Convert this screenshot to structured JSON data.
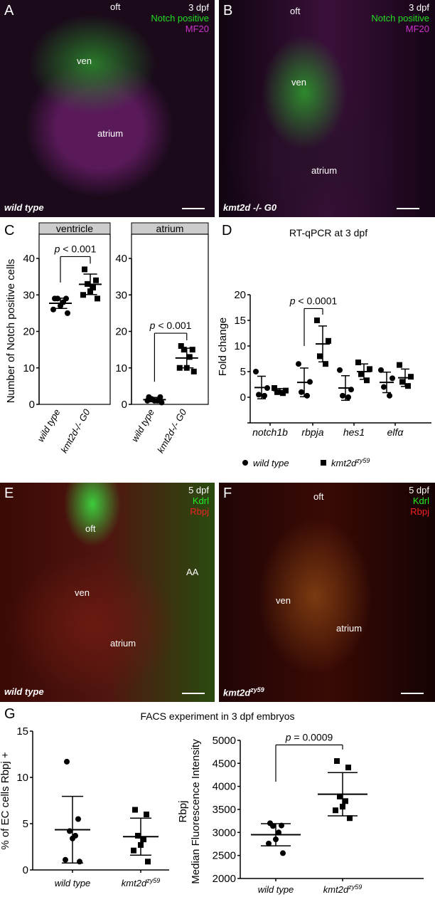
{
  "panels": {
    "A": {
      "letter": "A",
      "stage": "3 dpf",
      "ch1": "Notch positive",
      "ch2": "MF20",
      "oft": "oft",
      "ven": "ven",
      "atrium": "atrium",
      "genotype": "wild type",
      "colors": {
        "ch1": "#22dd22",
        "ch2": "#cc33cc"
      }
    },
    "B": {
      "letter": "B",
      "stage": "3 dpf",
      "ch1": "Notch positive",
      "ch2": "MF20",
      "oft": "oft",
      "ven": "ven",
      "atrium": "atrium",
      "genotype": "kmt2d -/- G0"
    },
    "C": {
      "letter": "C"
    },
    "D": {
      "letter": "D"
    },
    "E": {
      "letter": "E",
      "stage": "5 dpf",
      "ch1": "Kdrl",
      "ch2": "Rbpj",
      "oft": "oft",
      "ven": "ven",
      "atrium": "atrium",
      "aa": "AA",
      "genotype": "wild type",
      "colors": {
        "ch1": "#22ee22",
        "ch2": "#ee2222"
      }
    },
    "F": {
      "letter": "F",
      "stage": "5 dpf",
      "ch1": "Kdrl",
      "ch2": "Rbpj",
      "oft": "oft",
      "ven": "ven",
      "atrium": "atrium",
      "genotype": "kmt2d",
      "genotype_sup": "zy59"
    },
    "G": {
      "letter": "G",
      "title": "FACS experiment in 3 dpf embryos"
    }
  },
  "chart_data": [
    {
      "type": "scatter",
      "panel": "C",
      "facet": "ventricle",
      "ylabel": "Number of Notch positive cells",
      "ylim": [
        0,
        43
      ],
      "yticks": [
        0,
        10,
        20,
        30,
        40
      ],
      "categories": [
        "wild type",
        "kmt2d-/- G0"
      ],
      "annotation": "p < 0.001",
      "series": [
        {
          "values": [
            29,
            29,
            29,
            28,
            27,
            26,
            25
          ],
          "mean": 27.7,
          "sd": 1.4,
          "marker": "circle"
        },
        {
          "values": [
            37,
            34,
            33,
            32,
            31,
            30,
            29
          ],
          "mean": 32.9,
          "sd": 2.8,
          "marker": "square"
        }
      ]
    },
    {
      "type": "scatter",
      "panel": "C",
      "facet": "atrium",
      "ylim": [
        0,
        43
      ],
      "yticks": [
        0,
        10,
        20,
        30,
        40
      ],
      "categories": [
        "wild type",
        "kmt2d-/- G0"
      ],
      "annotation": "p < 0.001",
      "series": [
        {
          "values": [
            2,
            2,
            1.5,
            1,
            1,
            1,
            0.5
          ],
          "mean": 1.3,
          "sd": 0.6,
          "marker": "circle"
        },
        {
          "values": [
            16,
            15,
            15,
            13,
            10,
            10,
            9
          ],
          "mean": 12.7,
          "sd": 2.7,
          "marker": "square"
        }
      ]
    },
    {
      "type": "scatter",
      "panel": "D",
      "title": "RT-qPCR at 3 dpf",
      "ylabel": "Fold change",
      "ylim": [
        -5,
        20
      ],
      "yticks": [
        0,
        5,
        10,
        15,
        20
      ],
      "categories": [
        "notch1b",
        "rbpja",
        "hes1",
        "elfα"
      ],
      "annotation": "p < 0.0001",
      "legend": [
        "wild type",
        "kmt2d"
      ],
      "legend_sup": "zy59",
      "series": [
        {
          "name": "wild type",
          "marker": "circle",
          "groups": [
            {
              "values": [
                5,
                1.8,
                0.5,
                0.3
              ],
              "mean": 1.9,
              "sd": 2.2
            },
            {
              "values": [
                6.5,
                3,
                1,
                0.3
              ],
              "mean": 2.9,
              "sd": 2.8
            },
            {
              "values": [
                5.3,
                1.5,
                0.3,
                0
              ],
              "mean": 1.8,
              "sd": 2.4
            },
            {
              "values": [
                5.3,
                3.7,
                2,
                0.3
              ],
              "mean": 2.9,
              "sd": 2
            }
          ]
        },
        {
          "name": "kmt2d zy59",
          "marker": "square",
          "groups": [
            {
              "values": [
                1.8,
                1.3,
                1,
                0.8
              ],
              "mean": 1.3,
              "sd": 0.4
            },
            {
              "values": [
                15,
                11,
                8,
                6.5
              ],
              "mean": 10.4,
              "sd": 3.5
            },
            {
              "values": [
                6.8,
                5.5,
                4.5,
                3.3
              ],
              "mean": 5,
              "sd": 1.5
            },
            {
              "values": [
                6.3,
                4,
                3,
                2.2
              ],
              "mean": 3.8,
              "sd": 1.7
            }
          ]
        }
      ]
    },
    {
      "type": "scatter",
      "panel": "G",
      "ylabel": "% of EC cells Rbpj +",
      "ylim": [
        0,
        15
      ],
      "yticks": [
        0,
        5,
        10,
        15
      ],
      "categories": [
        "wild type",
        "kmt2d"
      ],
      "cat_sup": "zy59",
      "series": [
        {
          "values": [
            11.7,
            5.5,
            4.2,
            3.7,
            3.4,
            1.1,
            0.9
          ],
          "mean": 4.35,
          "sd": 3.6,
          "marker": "circle"
        },
        {
          "values": [
            6.5,
            6,
            3.7,
            3.3,
            2.7,
            2.1,
            0.9
          ],
          "mean": 3.6,
          "sd": 2,
          "marker": "square"
        }
      ]
    },
    {
      "type": "scatter",
      "panel": "G",
      "ylabel": "Median Fluorescence Intensity",
      "ylabel2": "Rbpj",
      "ylim": [
        2000,
        5000
      ],
      "yticks": [
        2000,
        2500,
        3000,
        3500,
        4000,
        4500,
        5000
      ],
      "categories": [
        "wild type",
        "kmt2d"
      ],
      "cat_sup": "zy59",
      "annotation": "p = 0.0009",
      "series": [
        {
          "values": [
            3200,
            3150,
            3140,
            3000,
            2850,
            2760,
            2550
          ],
          "mean": 2950,
          "sd": 240,
          "marker": "circle"
        },
        {
          "values": [
            4550,
            4410,
            3780,
            3680,
            3560,
            3480,
            3310
          ],
          "mean": 3830,
          "sd": 470,
          "marker": "square"
        }
      ]
    }
  ]
}
